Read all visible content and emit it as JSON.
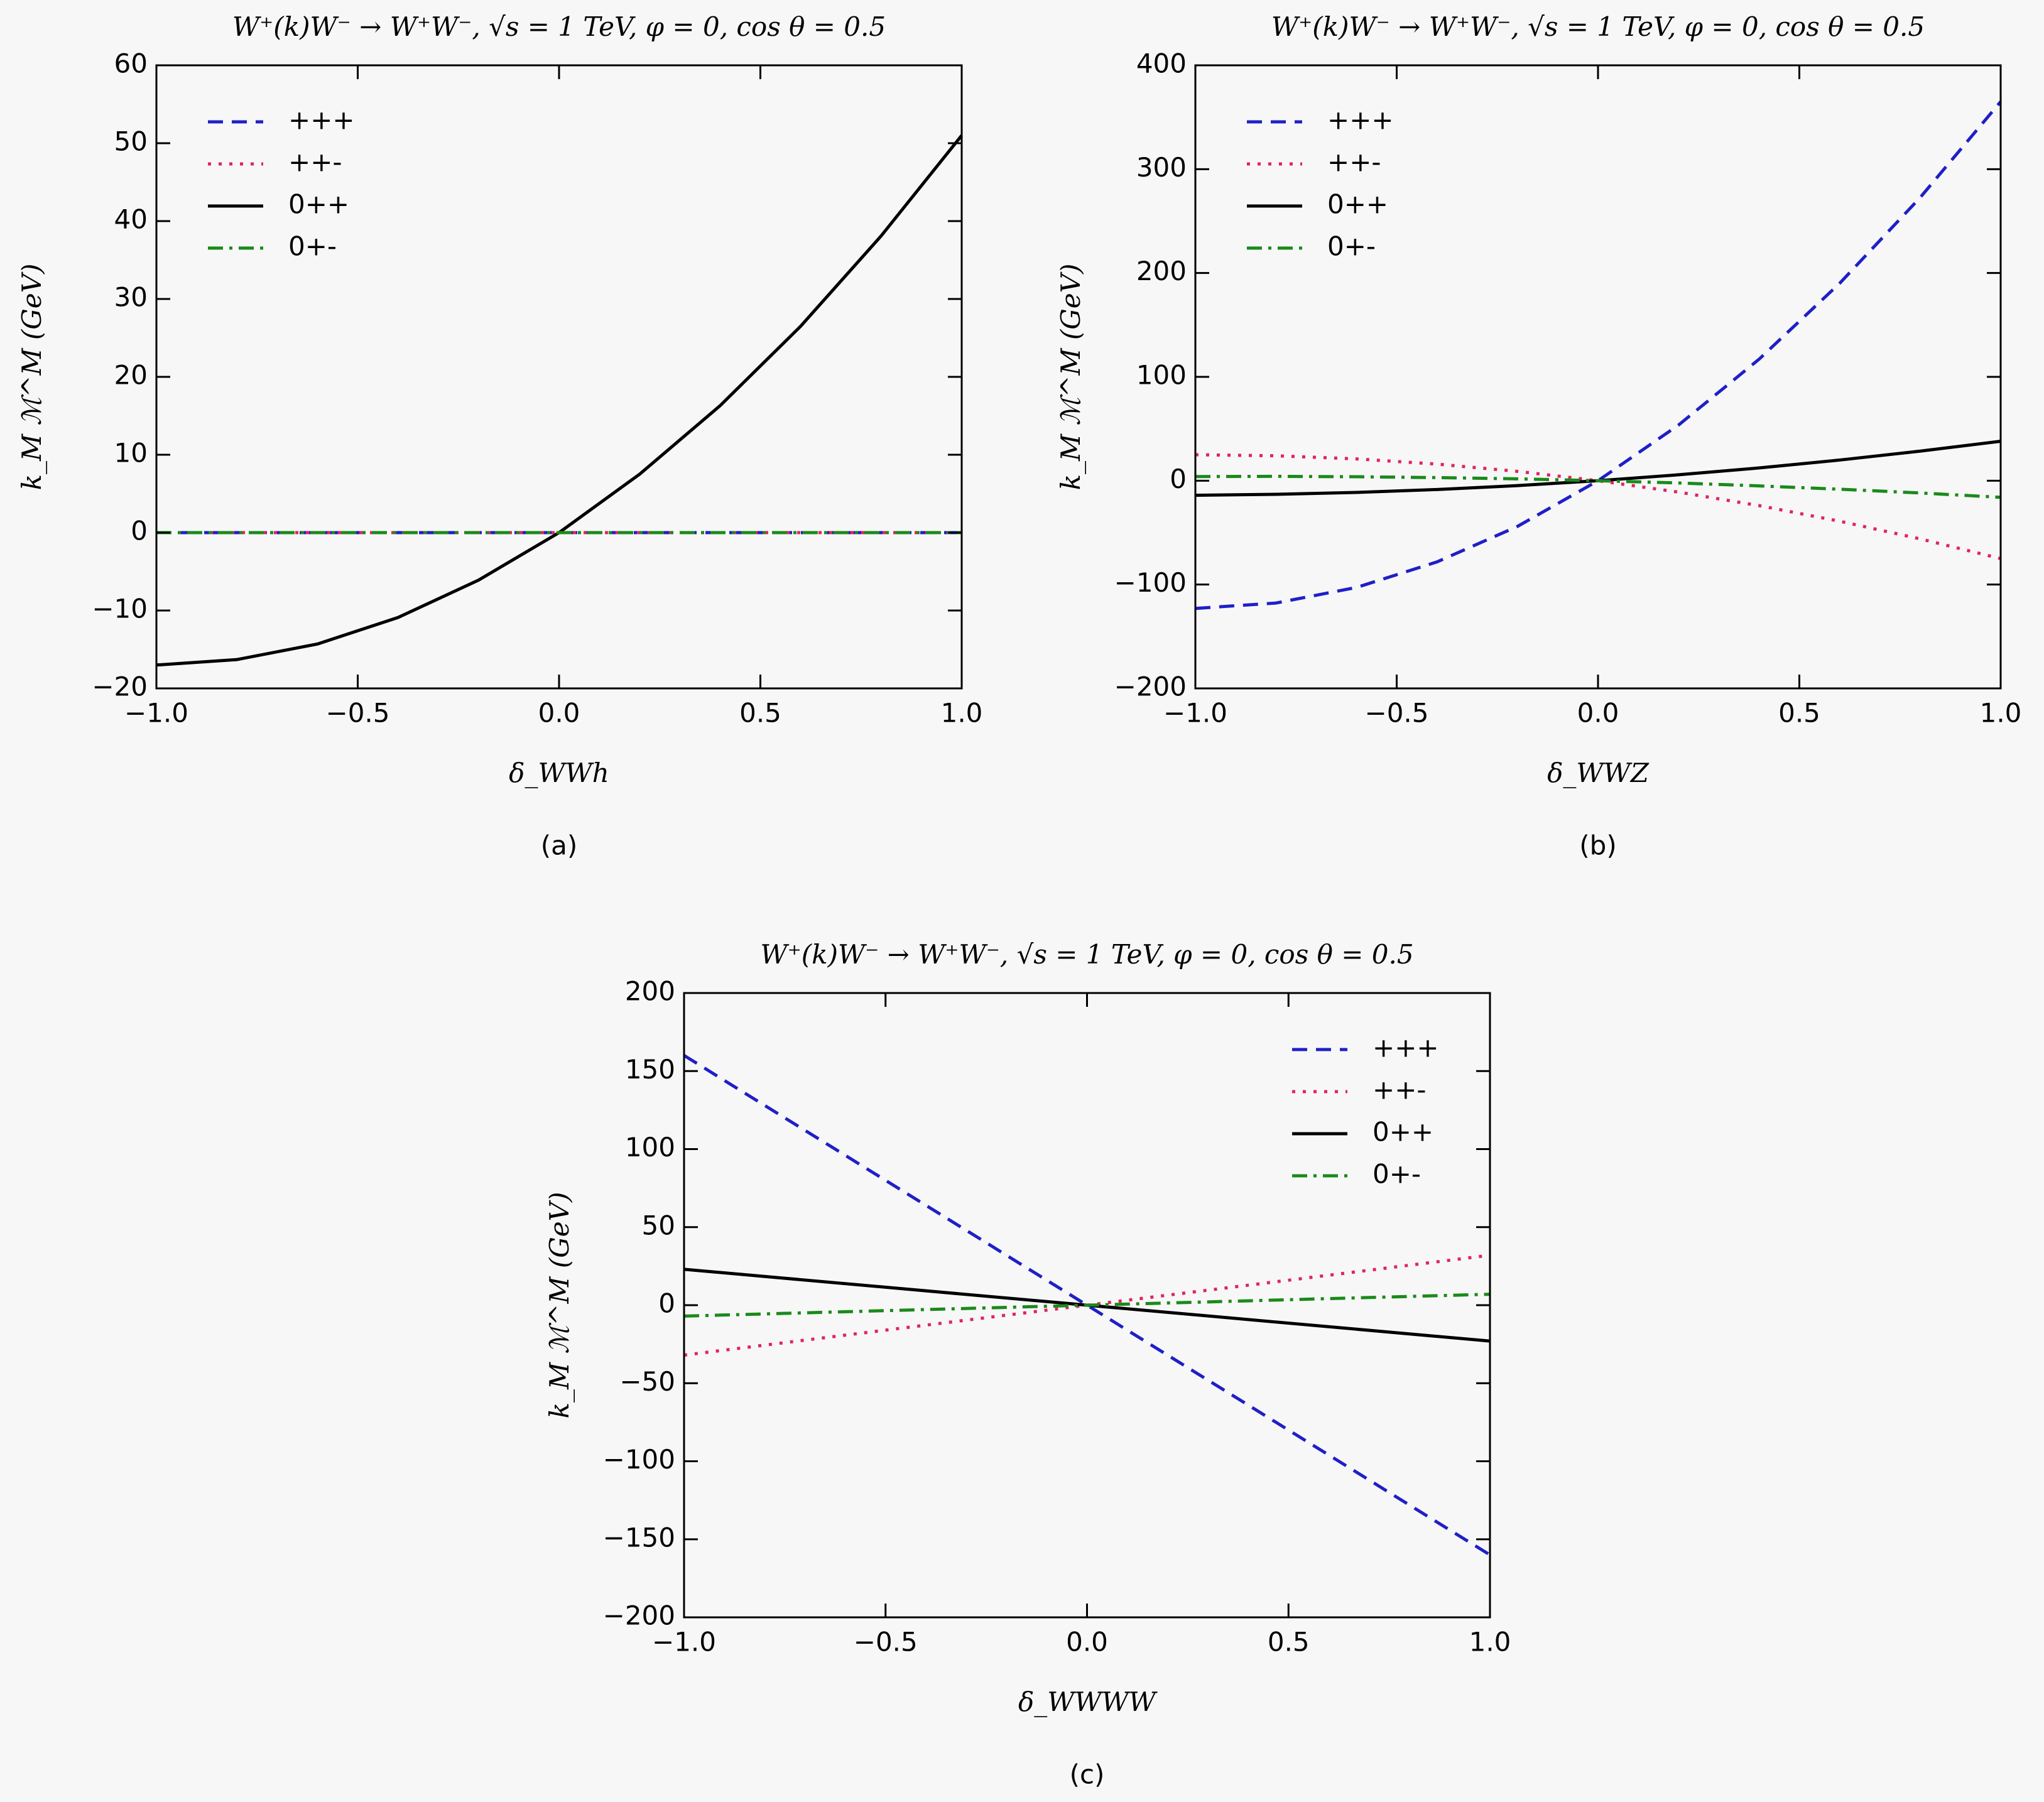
{
  "chart_data": [
    {
      "type": "line",
      "caption": "(a)",
      "title": "W⁺(k)W⁻ → W⁺W⁻,  √s = 1 TeV,  φ = 0, cos θ = 0.5",
      "xlabel": "δ_WWh",
      "ylabel": "k_M ℳ^M (GeV)",
      "x": [
        -1,
        -0.8,
        -0.6,
        -0.4,
        -0.2,
        0,
        0.2,
        0.4,
        0.6,
        0.8,
        1
      ],
      "series": [
        {
          "name": "+++",
          "color": "#1f1fc8",
          "dash": "dashed",
          "values": [
            0,
            0,
            0,
            0,
            0,
            0,
            0,
            0,
            0,
            0,
            0
          ]
        },
        {
          "name": "++-",
          "color": "#e0245e",
          "dash": "dotted",
          "values": [
            0,
            0,
            0,
            0,
            0,
            0,
            0,
            0,
            0,
            0,
            0
          ]
        },
        {
          "name": "0++",
          "color": "#000000",
          "dash": "solid",
          "values": [
            -17,
            -16.3,
            -14.3,
            -10.9,
            -6.1,
            0,
            7.5,
            16.3,
            26.5,
            38.1,
            51
          ]
        },
        {
          "name": "0+-",
          "color": "#1a8a1a",
          "dash": "dashdot",
          "values": [
            0,
            0,
            0,
            0,
            0,
            0,
            0,
            0,
            0,
            0,
            0
          ]
        }
      ],
      "xlim": [
        -1,
        1
      ],
      "xticks": [
        {
          "value": -1,
          "label": "−1.0"
        },
        {
          "value": -0.5,
          "label": "−0.5"
        },
        {
          "value": 0,
          "label": "0.0"
        },
        {
          "value": 0.5,
          "label": "0.5"
        },
        {
          "value": 1,
          "label": "1.0"
        }
      ],
      "ylim": [
        -20,
        60
      ],
      "yticks": [
        {
          "value": -20,
          "label": "−20"
        },
        {
          "value": -10,
          "label": "−10"
        },
        0,
        10,
        20,
        30,
        40,
        50,
        60
      ],
      "legend": "upper left"
    },
    {
      "type": "line",
      "caption": "(b)",
      "title": "W⁺(k)W⁻ → W⁺W⁻,  √s = 1 TeV,  φ = 0, cos θ = 0.5",
      "xlabel": "δ_WWZ",
      "ylabel": "k_M ℳ^M (GeV)",
      "x": [
        -1,
        -0.8,
        -0.6,
        -0.4,
        -0.2,
        0,
        0.2,
        0.4,
        0.6,
        0.8,
        1
      ],
      "series": [
        {
          "name": "+++",
          "color": "#1f1fc8",
          "dash": "dashed",
          "values": [
            -123,
            -117.8,
            -102.8,
            -78.2,
            -44,
            0,
            53.6,
            117,
            190,
            272.6,
            365
          ]
        },
        {
          "name": "++-",
          "color": "#e0245e",
          "dash": "dotted",
          "values": [
            25,
            24,
            21,
            16,
            9,
            0,
            -11,
            -24,
            -39,
            -56,
            -75
          ]
        },
        {
          "name": "0++",
          "color": "#000000",
          "dash": "solid",
          "values": [
            -14,
            -13.1,
            -11.3,
            -8.5,
            -4.7,
            0,
            5.7,
            12.3,
            19.9,
            28.5,
            38
          ]
        },
        {
          "name": "0+-",
          "color": "#1a8a1a",
          "dash": "dashdot",
          "values": [
            4,
            4.2,
            3.8,
            3,
            1.8,
            0,
            -2.2,
            -5,
            -8.2,
            -11.8,
            -16
          ]
        }
      ],
      "xlim": [
        -1,
        1
      ],
      "xticks": [
        {
          "value": -1,
          "label": "−1.0"
        },
        {
          "value": -0.5,
          "label": "−0.5"
        },
        {
          "value": 0,
          "label": "0.0"
        },
        {
          "value": 0.5,
          "label": "0.5"
        },
        {
          "value": 1,
          "label": "1.0"
        }
      ],
      "ylim": [
        -200,
        400
      ],
      "yticks": [
        {
          "value": -200,
          "label": "−200"
        },
        {
          "value": -100,
          "label": "−100"
        },
        0,
        100,
        200,
        300,
        400
      ],
      "legend": "upper left"
    },
    {
      "type": "line",
      "caption": "(c)",
      "title": "W⁺(k)W⁻ → W⁺W⁻,  √s = 1 TeV,  φ = 0, cos θ = 0.5",
      "xlabel": "δ_WWWW",
      "ylabel": "k_M ℳ^M (GeV)",
      "x": [
        -1,
        0,
        1
      ],
      "series": [
        {
          "name": "+++",
          "color": "#1f1fc8",
          "dash": "dashed",
          "values": [
            160,
            0,
            -160
          ]
        },
        {
          "name": "++-",
          "color": "#e0245e",
          "dash": "dotted",
          "values": [
            -32,
            0,
            32
          ]
        },
        {
          "name": "0++",
          "color": "#000000",
          "dash": "solid",
          "values": [
            23,
            0,
            -23
          ]
        },
        {
          "name": "0+-",
          "color": "#1a8a1a",
          "dash": "dashdot",
          "values": [
            -7,
            0,
            7
          ]
        }
      ],
      "xlim": [
        -1,
        1
      ],
      "xticks": [
        {
          "value": -1,
          "label": "−1.0"
        },
        {
          "value": -0.5,
          "label": "−0.5"
        },
        {
          "value": 0,
          "label": "0.0"
        },
        {
          "value": 0.5,
          "label": "0.5"
        },
        {
          "value": 1,
          "label": "1.0"
        }
      ],
      "ylim": [
        -200,
        200
      ],
      "yticks": [
        {
          "value": -200,
          "label": "−200"
        },
        {
          "value": -150,
          "label": "−150"
        },
        {
          "value": -100,
          "label": "−100"
        },
        {
          "value": -50,
          "label": "−50"
        },
        0,
        50,
        100,
        150,
        200
      ],
      "legend": "upper right"
    }
  ]
}
